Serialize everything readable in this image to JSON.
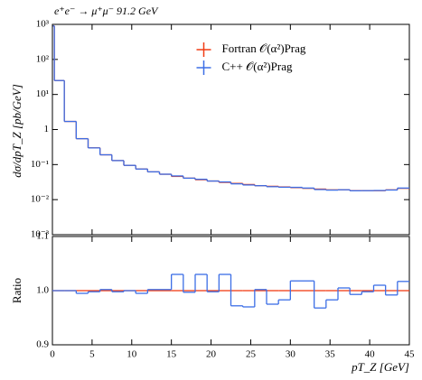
{
  "chart_data": [
    {
      "type": "histogram",
      "title": "e⁺e⁻ → μ⁺μ⁻ 91.2 GeV",
      "ylabel": "dσ/dpT_Z [pb/GeV]",
      "bins": [
        0,
        0.25,
        1.5,
        3,
        4.5,
        6,
        7.5,
        9,
        10.5,
        12,
        13.5,
        15,
        16.5,
        18,
        19.5,
        21,
        22.5,
        24,
        25.5,
        27,
        28.5,
        30,
        31.5,
        33,
        34.5,
        36,
        37.5,
        39,
        40.5,
        42,
        43.5,
        45
      ],
      "series": [
        {
          "name": "Fortran 𝒪(α²)Prag",
          "color": "#f03c14",
          "values": [
            900,
            25,
            1.7,
            0.55,
            0.3,
            0.19,
            0.13,
            0.095,
            0.075,
            0.062,
            0.053,
            0.046,
            0.041,
            0.037,
            0.034,
            0.031,
            0.029,
            0.027,
            0.025,
            0.024,
            0.023,
            0.022,
            0.021,
            0.02,
            0.019,
            0.019,
            0.018,
            0.018,
            0.018,
            0.019,
            0.021
          ]
        },
        {
          "name": "C++ 𝒪(α²)Prag",
          "color": "#3c6ee6",
          "values": [
            900,
            25,
            1.7,
            0.547,
            0.299,
            0.19,
            0.13,
            0.095,
            0.0746,
            0.0621,
            0.0531,
            0.0474,
            0.0409,
            0.0381,
            0.0339,
            0.0319,
            0.0282,
            0.0262,
            0.025,
            0.0234,
            0.0226,
            0.0224,
            0.0214,
            0.0194,
            0.0187,
            0.0191,
            0.0179,
            0.018,
            0.0182,
            0.0188,
            0.0214
          ]
        }
      ],
      "xlim": [
        0,
        45
      ],
      "ylim": [
        0.001,
        1000
      ],
      "log_y": true,
      "yticks": [
        {
          "value": 0.001,
          "label": "10⁻³"
        },
        {
          "value": 0.01,
          "label": "10⁻²"
        },
        {
          "value": 0.1,
          "label": "10⁻¹"
        },
        1,
        {
          "value": 10,
          "label": "10¹"
        },
        {
          "value": 100,
          "label": "10²"
        },
        {
          "value": 1000,
          "label": "10³"
        }
      ],
      "legend": "upper center"
    },
    {
      "type": "histogram",
      "xlabel": "pT_Z [GeV]",
      "ylabel": "Ratio",
      "bins": [
        0,
        0.25,
        1.5,
        3,
        4.5,
        6,
        7.5,
        9,
        10.5,
        12,
        13.5,
        15,
        16.5,
        18,
        19.5,
        21,
        22.5,
        24,
        25.5,
        27,
        28.5,
        30,
        31.5,
        33,
        34.5,
        36,
        37.5,
        39,
        40.5,
        42,
        43.5,
        45
      ],
      "series": [
        {
          "color": "#f03c14",
          "values": [
            1,
            1,
            1,
            1,
            1,
            1,
            1,
            1,
            1,
            1,
            1,
            1,
            1,
            1,
            1,
            1,
            1,
            1,
            1,
            1,
            1,
            1,
            1,
            1,
            1,
            1,
            1,
            1,
            1,
            1,
            1
          ]
        },
        {
          "color": "#3c6ee6",
          "values": [
            1,
            1,
            1,
            0.995,
            0.998,
            1.002,
            0.998,
            1,
            0.995,
            1.002,
            1.002,
            1.03,
            0.997,
            1.03,
            0.998,
            1.03,
            0.972,
            0.97,
            1.002,
            0.975,
            0.983,
            1.018,
            1.018,
            0.968,
            0.983,
            1.005,
            0.993,
            0.998,
            1.01,
            0.992,
            1.017
          ]
        }
      ],
      "xlim": [
        0,
        45
      ],
      "xticks": [
        0,
        5,
        10,
        15,
        20,
        25,
        30,
        35,
        40,
        45
      ],
      "ylim": [
        0.9,
        1.1
      ],
      "yticks": [
        0.9,
        {
          "value": 1.0,
          "label": "1.0"
        },
        1.1
      ]
    }
  ]
}
